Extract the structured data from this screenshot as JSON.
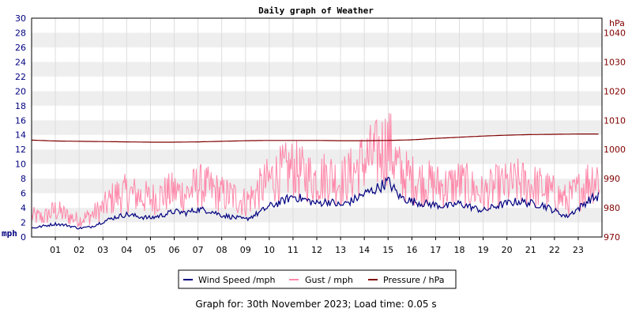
{
  "chart_data": {
    "type": "line",
    "title": "Daily graph of Weather",
    "left_axis": {
      "unit_label": "mph",
      "ylim": [
        0,
        30
      ],
      "ticks": [
        0,
        2,
        4,
        6,
        8,
        10,
        12,
        14,
        16,
        18,
        20,
        22,
        24,
        26,
        28,
        30
      ]
    },
    "right_axis": {
      "unit_label": "hPa",
      "ylim": [
        970,
        1045
      ],
      "ticks": [
        970,
        980,
        990,
        1000,
        1010,
        1020,
        1030,
        1040
      ]
    },
    "x_axis": {
      "xlim": [
        0,
        24
      ],
      "hour_labels": [
        "01",
        "02",
        "03",
        "04",
        "05",
        "06",
        "07",
        "08",
        "09",
        "10",
        "11",
        "12",
        "13",
        "14",
        "15",
        "16",
        "17",
        "18",
        "19",
        "20",
        "21",
        "22",
        "23"
      ]
    },
    "grid": true,
    "series": [
      {
        "name": "Wind Speed /mph",
        "color": "#000080",
        "axis": "left",
        "x": [
          0,
          0.5,
          1,
          1.5,
          2,
          2.5,
          3,
          3.5,
          4,
          4.5,
          5,
          5.5,
          6,
          6.5,
          7,
          7.5,
          8,
          8.5,
          9,
          9.5,
          10,
          10.5,
          11,
          11.5,
          12,
          12.5,
          13,
          13.5,
          14,
          14.5,
          15,
          15.5,
          16,
          16.5,
          17,
          17.5,
          18,
          18.5,
          19,
          19.5,
          20,
          20.5,
          21,
          21.5,
          22,
          22.5,
          23,
          23.5,
          23.9
        ],
        "values": [
          1.2,
          1.5,
          1.8,
          1.6,
          1.2,
          1.4,
          2.1,
          2.7,
          3.1,
          2.8,
          2.6,
          3.0,
          3.5,
          3.3,
          3.8,
          3.6,
          3.0,
          2.7,
          2.4,
          3.2,
          4.2,
          4.8,
          5.6,
          5.1,
          4.6,
          4.9,
          4.3,
          5.0,
          5.9,
          6.6,
          7.6,
          5.5,
          4.9,
          4.6,
          4.4,
          4.2,
          4.6,
          4.1,
          3.6,
          4.2,
          4.6,
          4.9,
          4.6,
          4.4,
          3.6,
          2.8,
          3.9,
          5.2,
          5.6
        ]
      },
      {
        "name": "Gust / mph",
        "color": "#ff88aa",
        "axis": "left",
        "x": [
          0,
          0.5,
          1,
          1.5,
          2,
          2.5,
          3,
          3.5,
          4,
          4.5,
          5,
          5.5,
          6,
          6.5,
          7,
          7.5,
          8,
          8.5,
          9,
          9.5,
          10,
          10.5,
          11,
          11.5,
          12,
          12.5,
          13,
          13.5,
          14,
          14.5,
          15,
          15.5,
          16,
          16.5,
          17,
          17.5,
          18,
          18.5,
          19,
          19.5,
          20,
          20.5,
          21,
          21.5,
          22,
          22.5,
          23,
          23.5,
          23.9
        ],
        "values": [
          3.5,
          3.2,
          4.5,
          3.5,
          2.8,
          3.6,
          4.8,
          6.8,
          7.3,
          6.9,
          6.3,
          7.0,
          7.6,
          7.1,
          8.6,
          8.0,
          7.1,
          6.7,
          5.8,
          7.5,
          9.5,
          10.6,
          11.4,
          10.2,
          9.6,
          10.3,
          9.1,
          10.6,
          12.6,
          13.6,
          15.6,
          10.6,
          9.6,
          9.1,
          8.6,
          8.3,
          9.1,
          8.1,
          7.1,
          8.3,
          8.6,
          9.1,
          8.6,
          8.1,
          7.1,
          6.1,
          7.6,
          9.6,
          10.1
        ]
      },
      {
        "name": "Pressure / hPa",
        "color": "#800000",
        "axis": "right",
        "x": [
          0,
          1,
          2,
          3,
          4,
          5,
          6,
          7,
          8,
          9,
          10,
          11,
          12,
          13,
          14,
          15,
          16,
          17,
          18,
          19,
          20,
          21,
          22,
          23,
          23.9
        ],
        "values": [
          1003.2,
          1002.9,
          1002.8,
          1002.7,
          1002.6,
          1002.5,
          1002.5,
          1002.6,
          1002.8,
          1003.0,
          1003.1,
          1003.1,
          1003.1,
          1003.0,
          1003.0,
          1003.1,
          1003.3,
          1003.8,
          1004.2,
          1004.6,
          1004.9,
          1005.1,
          1005.2,
          1005.3,
          1005.3
        ]
      }
    ],
    "legend": {
      "placement": "bottom-center",
      "items": [
        "Wind Speed /mph",
        "Gust / mph",
        "Pressure / hPa"
      ]
    }
  },
  "footer": "Graph for: 30th November 2023; Load time: 0.05 s"
}
